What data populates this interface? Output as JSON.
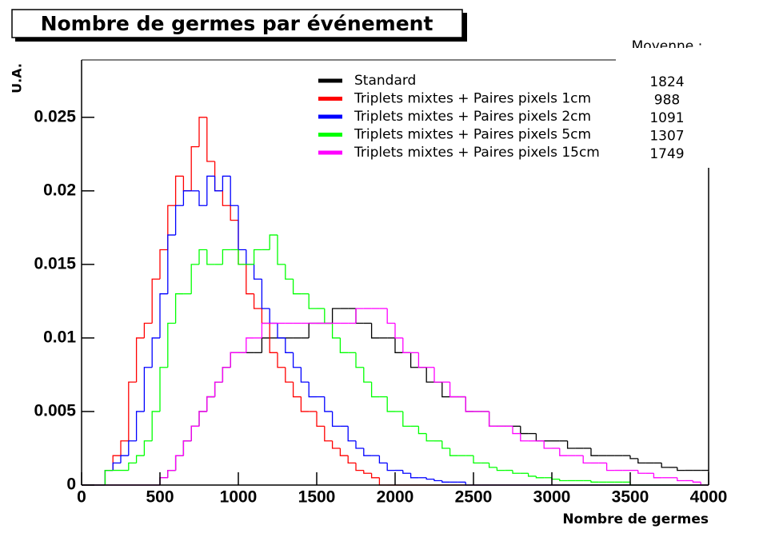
{
  "chart_data": {
    "type": "histogram",
    "title": "Nombre de germes par événement",
    "ylabel": "U.A.",
    "xlabel": "Nombre de germes",
    "legend_header": "Moyenne :",
    "legend": "top-right",
    "xlim": [
      0,
      4000
    ],
    "ylim": [
      0,
      0.0289
    ],
    "xticks": [
      0,
      500,
      1000,
      1500,
      2000,
      2500,
      3000,
      3500,
      4000
    ],
    "yticks": [
      0,
      0.005,
      0.01,
      0.015,
      0.02,
      0.025
    ],
    "bins": [
      0,
      50,
      100,
      150,
      200,
      250,
      300,
      350,
      400,
      450,
      500,
      550,
      600,
      650,
      700,
      750,
      800,
      850,
      900,
      950,
      1000,
      1050,
      1100,
      1150,
      1200,
      1250,
      1300,
      1350,
      1400,
      1450,
      1500,
      1550,
      1600,
      1650,
      1700,
      1750,
      1800,
      1850,
      1900,
      1950,
      2000,
      2050,
      2100,
      2150,
      2200,
      2250,
      2300,
      2350,
      2400,
      2450,
      2500,
      2550,
      2600,
      2650,
      2700,
      2750,
      2800,
      2850,
      2900,
      2950,
      3000,
      3050,
      3100,
      3150,
      3200,
      3250,
      3300,
      3350,
      3400,
      3450,
      3500,
      3550,
      3600,
      3650,
      3700,
      3750,
      3800,
      3850,
      3900,
      3950,
      4000
    ],
    "series": [
      {
        "name": "Standard",
        "color": "#000000",
        "mean": 1824,
        "values": [
          0,
          0,
          0,
          0,
          0,
          0,
          0,
          0,
          0,
          0,
          0.0005,
          0.001,
          0.002,
          0.003,
          0.004,
          0.005,
          0.006,
          0.007,
          0.008,
          0.009,
          0.009,
          0.009,
          0.009,
          0.01,
          0.01,
          0.01,
          0.01,
          0.01,
          0.01,
          0.011,
          0.011,
          0.011,
          0.012,
          0.012,
          0.012,
          0.011,
          0.011,
          0.01,
          0.01,
          0.01,
          0.009,
          0.009,
          0.008,
          0.008,
          0.007,
          0.007,
          0.006,
          0.006,
          0.006,
          0.005,
          0.005,
          0.005,
          0.004,
          0.004,
          0.004,
          0.004,
          0.0035,
          0.0035,
          0.003,
          0.003,
          0.003,
          0.003,
          0.0025,
          0.0025,
          0.0025,
          0.002,
          0.002,
          0.002,
          0.002,
          0.002,
          0.0018,
          0.0015,
          0.0015,
          0.0015,
          0.0012,
          0.0012,
          0.001,
          0.001,
          0.001,
          0.001
        ]
      },
      {
        "name": "Triplets mixtes + Paires pixels 1cm",
        "color": "#ff0000",
        "mean": 988,
        "values": [
          0,
          0,
          0,
          0.001,
          0.002,
          0.003,
          0.007,
          0.01,
          0.011,
          0.014,
          0.016,
          0.019,
          0.021,
          0.02,
          0.023,
          0.025,
          0.022,
          0.02,
          0.019,
          0.018,
          0.015,
          0.013,
          0.012,
          0.011,
          0.009,
          0.008,
          0.007,
          0.006,
          0.005,
          0.005,
          0.004,
          0.003,
          0.0025,
          0.002,
          0.0015,
          0.001,
          0.0008,
          0.0005,
          0,
          0,
          0,
          0,
          0,
          0,
          0,
          0,
          0,
          0,
          0,
          0,
          0,
          0,
          0,
          0,
          0,
          0,
          0,
          0,
          0,
          0,
          0,
          0,
          0,
          0,
          0,
          0,
          0,
          0,
          0,
          0,
          0,
          0,
          0,
          0,
          0,
          0,
          0,
          0,
          0,
          0
        ]
      },
      {
        "name": "Triplets mixtes + Paires pixels 2cm",
        "color": "#0000ff",
        "mean": 1091,
        "values": [
          0,
          0,
          0,
          0.001,
          0.0015,
          0.002,
          0.003,
          0.005,
          0.008,
          0.01,
          0.013,
          0.017,
          0.019,
          0.02,
          0.02,
          0.019,
          0.021,
          0.02,
          0.021,
          0.019,
          0.016,
          0.015,
          0.014,
          0.012,
          0.011,
          0.01,
          0.009,
          0.008,
          0.007,
          0.006,
          0.006,
          0.005,
          0.004,
          0.004,
          0.003,
          0.0025,
          0.002,
          0.002,
          0.0015,
          0.001,
          0.001,
          0.0008,
          0.0005,
          0.0005,
          0.0004,
          0.0003,
          0.0002,
          0.0002,
          0.0002,
          0,
          0,
          0,
          0,
          0,
          0,
          0,
          0,
          0,
          0,
          0,
          0,
          0,
          0,
          0,
          0,
          0,
          0,
          0,
          0,
          0,
          0,
          0,
          0,
          0,
          0,
          0,
          0,
          0,
          0,
          0
        ]
      },
      {
        "name": "Triplets mixtes + Paires pixels 5cm",
        "color": "#00ff00",
        "mean": 1307,
        "values": [
          0,
          0,
          0,
          0.001,
          0.001,
          0.001,
          0.0015,
          0.002,
          0.003,
          0.005,
          0.008,
          0.011,
          0.013,
          0.013,
          0.015,
          0.016,
          0.015,
          0.015,
          0.016,
          0.016,
          0.015,
          0.015,
          0.016,
          0.016,
          0.017,
          0.015,
          0.014,
          0.013,
          0.013,
          0.012,
          0.012,
          0.011,
          0.01,
          0.009,
          0.009,
          0.008,
          0.007,
          0.006,
          0.006,
          0.005,
          0.005,
          0.004,
          0.004,
          0.0035,
          0.003,
          0.003,
          0.0025,
          0.002,
          0.002,
          0.002,
          0.0015,
          0.0015,
          0.0012,
          0.001,
          0.001,
          0.0008,
          0.0008,
          0.0006,
          0.0005,
          0.0005,
          0.0004,
          0.0003,
          0.0003,
          0.0003,
          0.0003,
          0.0002,
          0.0002,
          0.0002,
          0.0002,
          0.0002,
          0,
          0,
          0,
          0,
          0,
          0,
          0,
          0,
          0,
          0
        ]
      },
      {
        "name": "Triplets mixtes + Paires pixels 15cm",
        "color": "#ff00ff",
        "mean": 1749,
        "values": [
          0,
          0,
          0,
          0,
          0,
          0,
          0,
          0,
          0,
          0,
          0.0005,
          0.001,
          0.002,
          0.003,
          0.004,
          0.005,
          0.006,
          0.007,
          0.008,
          0.009,
          0.009,
          0.01,
          0.01,
          0.011,
          0.011,
          0.011,
          0.011,
          0.011,
          0.011,
          0.011,
          0.011,
          0.011,
          0.011,
          0.011,
          0.011,
          0.012,
          0.012,
          0.012,
          0.012,
          0.011,
          0.01,
          0.009,
          0.009,
          0.008,
          0.008,
          0.007,
          0.007,
          0.006,
          0.006,
          0.005,
          0.005,
          0.005,
          0.004,
          0.004,
          0.004,
          0.0035,
          0.003,
          0.003,
          0.003,
          0.0025,
          0.0025,
          0.002,
          0.002,
          0.002,
          0.0015,
          0.0015,
          0.0015,
          0.001,
          0.001,
          0.001,
          0.001,
          0.0008,
          0.0008,
          0.0005,
          0.0005,
          0.0005,
          0.0003,
          0.0003,
          0.0002,
          0
        ]
      }
    ]
  }
}
